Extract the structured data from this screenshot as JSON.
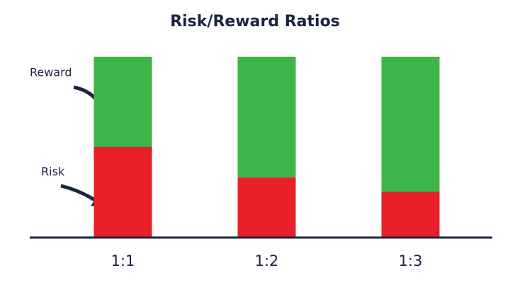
{
  "chart_data": {
    "type": "stacked_bar",
    "title": "Risk/Reward Ratios",
    "categories": [
      "1:1",
      "1:2",
      "1:3"
    ],
    "series": [
      {
        "name": "Risk",
        "color": "#e8202a",
        "values": [
          50,
          33,
          25
        ]
      },
      {
        "name": "Reward",
        "color": "#3cb54a",
        "values": [
          50,
          67,
          75
        ]
      }
    ],
    "ylim": [
      0,
      100
    ]
  }
}
